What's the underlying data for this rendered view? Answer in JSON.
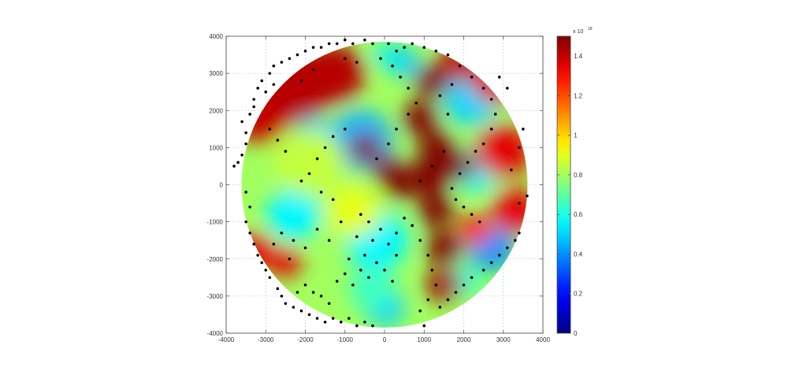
{
  "chart_data": {
    "type": "heatmap",
    "title": "",
    "xlabel": "",
    "ylabel": "",
    "xlim": [
      -4000,
      4000
    ],
    "ylim": [
      -4000,
      4000
    ],
    "xticks": [
      "-4000",
      "-3000",
      "-2000",
      "-1000",
      "0",
      "1000",
      "2000",
      "3000",
      "4000"
    ],
    "yticks": [
      "4000",
      "3000",
      "2000",
      "1000",
      "0",
      "-1000",
      "-2000",
      "-3000",
      "-4000"
    ],
    "grid": true,
    "circle_radius": 3850,
    "colorbar": {
      "colormap": "jet",
      "range": [
        0,
        1.5
      ],
      "multiplier": "x 10",
      "exponent": "18",
      "ticks": [
        "0",
        "0.2",
        "0.4",
        "0.6",
        "0.8",
        "1",
        "1.2",
        "1.4"
      ]
    },
    "regions": [
      {
        "x": -2400,
        "y": 2700,
        "r": 1100,
        "value": 1.42
      },
      {
        "x": -3100,
        "y": 1700,
        "r": 600,
        "value": 1.4
      },
      {
        "x": -3300,
        "y": -1800,
        "r": 500,
        "value": 1.35
      },
      {
        "x": -2500,
        "y": -2100,
        "r": 400,
        "value": 1.35
      },
      {
        "x": -1300,
        "y": 3000,
        "r": 800,
        "value": 1.42
      },
      {
        "x": 0,
        "y": 3500,
        "r": 300,
        "value": 0.55
      },
      {
        "x": 500,
        "y": 3300,
        "r": 400,
        "value": 0.5
      },
      {
        "x": -600,
        "y": 1200,
        "r": 800,
        "value": 0.45
      },
      {
        "x": -1800,
        "y": 1300,
        "r": 500,
        "value": 0.5
      },
      {
        "x": -2300,
        "y": -800,
        "r": 700,
        "value": 0.55
      },
      {
        "x": -200,
        "y": -1500,
        "r": 800,
        "value": 0.55
      },
      {
        "x": 0,
        "y": -3300,
        "r": 500,
        "value": 0.5
      },
      {
        "x": -300,
        "y": -2800,
        "r": 600,
        "value": 0.65
      },
      {
        "x": 2200,
        "y": 2300,
        "r": 700,
        "value": 0.5
      },
      {
        "x": 2300,
        "y": 400,
        "r": 600,
        "value": 0.55
      },
      {
        "x": 2700,
        "y": -1700,
        "r": 600,
        "value": 0.4
      },
      {
        "x": 2000,
        "y": -2600,
        "r": 400,
        "value": 0.6
      },
      {
        "x": -1900,
        "y": 600,
        "r": 900,
        "value": 0.85
      },
      {
        "x": -800,
        "y": -700,
        "r": 700,
        "value": 0.9
      },
      {
        "x": 3000,
        "y": 900,
        "r": 700,
        "value": 1.35
      },
      {
        "x": 3300,
        "y": -700,
        "r": 600,
        "value": 1.35
      },
      {
        "x": 2800,
        "y": 2800,
        "r": 600,
        "value": 1.35
      },
      {
        "x": 1900,
        "y": 3300,
        "r": 500,
        "value": 1.4
      },
      {
        "x": 2300,
        "y": -1200,
        "r": 400,
        "value": 1.3
      },
      {
        "x": 1200,
        "y": 2800,
        "r": 450,
        "value": 1.5
      },
      {
        "x": 900,
        "y": 1800,
        "r": 450,
        "value": 1.5
      },
      {
        "x": 1300,
        "y": 1000,
        "r": 450,
        "value": 1.5
      },
      {
        "x": 1900,
        "y": 500,
        "r": 400,
        "value": 1.5
      },
      {
        "x": 1100,
        "y": 200,
        "r": 500,
        "value": 1.5
      },
      {
        "x": 1300,
        "y": -700,
        "r": 450,
        "value": 1.5
      },
      {
        "x": 1500,
        "y": -1700,
        "r": 450,
        "value": 1.5
      },
      {
        "x": 1500,
        "y": -2700,
        "r": 450,
        "value": 1.45
      },
      {
        "x": -500,
        "y": 1000,
        "r": 400,
        "value": 1.5
      },
      {
        "x": 100,
        "y": 400,
        "r": 400,
        "value": 1.5
      },
      {
        "x": 400,
        "y": 0,
        "r": 400,
        "value": 1.5
      }
    ],
    "points": [
      [
        -3600,
        1700
      ],
      [
        -3500,
        1400
      ],
      [
        -3400,
        1900
      ],
      [
        -3300,
        2300
      ],
      [
        -3200,
        2600
      ],
      [
        -3100,
        2800
      ],
      [
        -2900,
        3000
      ],
      [
        -2800,
        3200
      ],
      [
        -2600,
        3300
      ],
      [
        -2400,
        3400
      ],
      [
        -2200,
        3500
      ],
      [
        -2000,
        3600
      ],
      [
        -1800,
        3700
      ],
      [
        -1600,
        3700
      ],
      [
        -1400,
        3800
      ],
      [
        -1200,
        3800
      ],
      [
        -1000,
        3900
      ],
      [
        -800,
        3800
      ],
      [
        -500,
        3900
      ],
      [
        -300,
        3800
      ],
      [
        -3000,
        2500
      ],
      [
        -2800,
        2700
      ],
      [
        -3300,
        2100
      ],
      [
        -3500,
        1100
      ],
      [
        -3600,
        800
      ],
      [
        -3700,
        600
      ],
      [
        -3800,
        500
      ],
      [
        -3500,
        -200
      ],
      [
        -3400,
        -600
      ],
      [
        -3500,
        -1000
      ],
      [
        -3400,
        -1300
      ],
      [
        -3300,
        -1600
      ],
      [
        -3200,
        -1900
      ],
      [
        -3100,
        -2100
      ],
      [
        -3000,
        -2300
      ],
      [
        -2900,
        -2500
      ],
      [
        -2700,
        -2800
      ],
      [
        -2600,
        -3000
      ],
      [
        -2500,
        -3200
      ],
      [
        -2300,
        -3300
      ],
      [
        -2100,
        -3400
      ],
      [
        -1900,
        -3500
      ],
      [
        -1700,
        -3600
      ],
      [
        -1500,
        -3700
      ],
      [
        -1300,
        -3600
      ],
      [
        -1100,
        -3700
      ],
      [
        -900,
        -3600
      ],
      [
        -700,
        -3800
      ],
      [
        -500,
        -3700
      ],
      [
        -300,
        -3800
      ],
      [
        -2200,
        -2900
      ],
      [
        -2000,
        -2700
      ],
      [
        -1800,
        -2900
      ],
      [
        -1600,
        -3000
      ],
      [
        -1400,
        -3200
      ],
      [
        -1200,
        -2600
      ],
      [
        -1000,
        -2400
      ],
      [
        -800,
        -2700
      ],
      [
        -600,
        -2300
      ],
      [
        -400,
        -2500
      ],
      [
        -200,
        -2100
      ],
      [
        0,
        -2300
      ],
      [
        200,
        -2600
      ],
      [
        -300,
        -1500
      ],
      [
        -100,
        -1200
      ],
      [
        100,
        -1600
      ],
      [
        300,
        -1900
      ],
      [
        -500,
        -1900
      ],
      [
        -700,
        -1400
      ],
      [
        -900,
        -2000
      ],
      [
        -600,
        -800
      ],
      [
        -400,
        -1000
      ],
      [
        300,
        -1300
      ],
      [
        500,
        -900
      ],
      [
        700,
        -1100
      ],
      [
        900,
        -1500
      ],
      [
        1100,
        -1900
      ],
      [
        1200,
        -2300
      ],
      [
        1300,
        -2700
      ],
      [
        1100,
        -3100
      ],
      [
        900,
        -3400
      ],
      [
        1000,
        -3800
      ],
      [
        1400,
        -3300
      ],
      [
        1600,
        -3100
      ],
      [
        1800,
        -2900
      ],
      [
        2000,
        -2700
      ],
      [
        2200,
        -2500
      ],
      [
        2500,
        -2300
      ],
      [
        2700,
        -2100
      ],
      [
        2900,
        -1900
      ],
      [
        3100,
        -1700
      ],
      [
        3300,
        -1500
      ],
      [
        3400,
        -1300
      ],
      [
        2400,
        -1000
      ],
      [
        2200,
        -800
      ],
      [
        2000,
        -600
      ],
      [
        1800,
        -400
      ],
      [
        1700,
        -100
      ],
      [
        1900,
        300
      ],
      [
        2100,
        600
      ],
      [
        2300,
        900
      ],
      [
        2500,
        1100
      ],
      [
        2700,
        1500
      ],
      [
        2800,
        1900
      ],
      [
        2700,
        2300
      ],
      [
        2500,
        2600
      ],
      [
        2200,
        2900
      ],
      [
        1900,
        3200
      ],
      [
        1600,
        3500
      ],
      [
        1300,
        3600
      ],
      [
        1000,
        3700
      ],
      [
        700,
        3800
      ],
      [
        500,
        3700
      ],
      [
        300,
        3600
      ],
      [
        100,
        3800
      ],
      [
        -100,
        3400
      ],
      [
        200,
        3200
      ],
      [
        400,
        2900
      ],
      [
        600,
        2600
      ],
      [
        800,
        2200
      ],
      [
        600,
        1900
      ],
      [
        300,
        1500
      ],
      [
        100,
        1100
      ],
      [
        -200,
        700
      ],
      [
        -1000,
        1500
      ],
      [
        -1300,
        1300
      ],
      [
        -1500,
        1000
      ],
      [
        -1700,
        700
      ],
      [
        -1900,
        300
      ],
      [
        -2100,
        100
      ],
      [
        -1600,
        -200
      ],
      [
        -1300,
        -400
      ],
      [
        -2500,
        900
      ],
      [
        -2700,
        1200
      ],
      [
        -2900,
        1500
      ],
      [
        3600,
        -300
      ],
      [
        3400,
        -500
      ],
      [
        3200,
        400
      ],
      [
        3400,
        1000
      ],
      [
        3500,
        1500
      ],
      [
        3100,
        2600
      ],
      [
        2900,
        2900
      ],
      [
        -1700,
        -1200
      ],
      [
        -1400,
        -1500
      ],
      [
        -1100,
        -1000
      ],
      [
        -2000,
        -1700
      ],
      [
        -2300,
        -1500
      ],
      [
        -2600,
        -1300
      ],
      [
        -2800,
        -1600
      ],
      [
        -2400,
        -2000
      ],
      [
        1500,
        900
      ],
      [
        1200,
        500
      ],
      [
        900,
        100
      ],
      [
        1600,
        1900
      ],
      [
        1400,
        2400
      ],
      [
        1700,
        2700
      ],
      [
        -1000,
        3400
      ],
      [
        -700,
        3300
      ],
      [
        -1800,
        3100
      ],
      [
        -2100,
        2800
      ]
    ]
  }
}
